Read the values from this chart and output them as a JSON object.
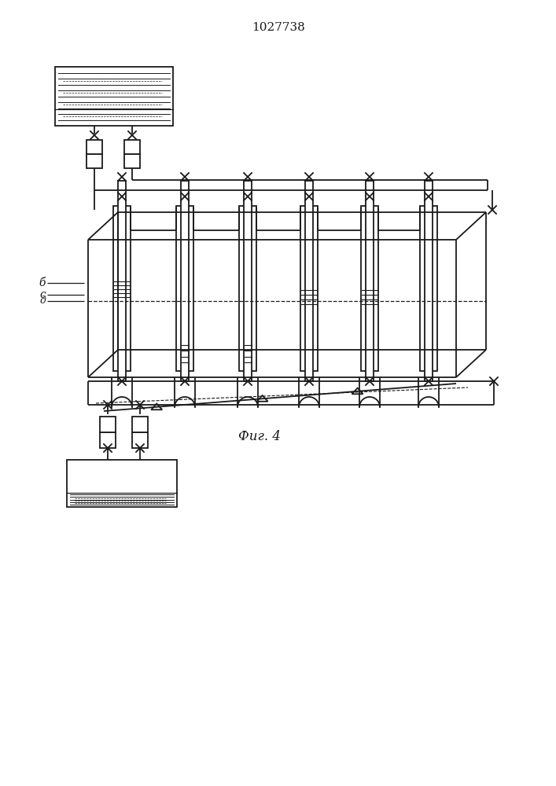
{
  "title": "1027738",
  "fig_label": "Фиг. 4",
  "bg_color": "#ffffff",
  "line_color": "#1a1a1a",
  "title_fontsize": 11,
  "fig_label_fontsize": 12,
  "label_b": "б",
  "label_c": "с",
  "label_d": "д"
}
